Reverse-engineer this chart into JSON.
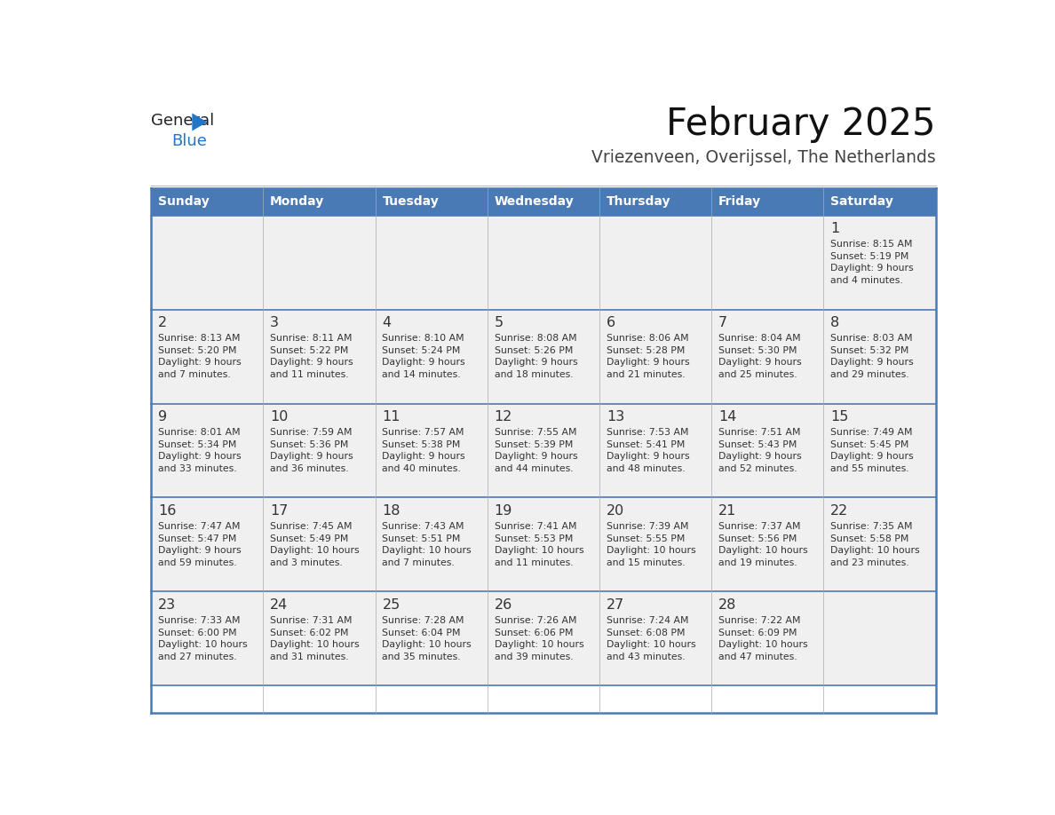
{
  "title": "February 2025",
  "subtitle": "Vriezenveen, Overijssel, The Netherlands",
  "days_of_week": [
    "Sunday",
    "Monday",
    "Tuesday",
    "Wednesday",
    "Thursday",
    "Friday",
    "Saturday"
  ],
  "header_bg": "#4a7ab5",
  "header_text_color": "#FFFFFF",
  "cell_bg": "#F0F0F0",
  "border_color": "#4a7ab5",
  "row_border_color": "#4a7ab5",
  "day_number_color": "#333333",
  "cell_text_color": "#333333",
  "title_color": "#111111",
  "subtitle_color": "#444444",
  "logo_general_color": "#222222",
  "logo_blue_color": "#2176C7",
  "weeks": [
    [
      {
        "day": null,
        "sunrise": null,
        "sunset": null,
        "daylight": null
      },
      {
        "day": null,
        "sunrise": null,
        "sunset": null,
        "daylight": null
      },
      {
        "day": null,
        "sunrise": null,
        "sunset": null,
        "daylight": null
      },
      {
        "day": null,
        "sunrise": null,
        "sunset": null,
        "daylight": null
      },
      {
        "day": null,
        "sunrise": null,
        "sunset": null,
        "daylight": null
      },
      {
        "day": null,
        "sunrise": null,
        "sunset": null,
        "daylight": null
      },
      {
        "day": 1,
        "sunrise": "8:15 AM",
        "sunset": "5:19 PM",
        "daylight_h": "9 hours",
        "daylight_m": "and 4 minutes."
      }
    ],
    [
      {
        "day": 2,
        "sunrise": "8:13 AM",
        "sunset": "5:20 PM",
        "daylight_h": "9 hours",
        "daylight_m": "and 7 minutes."
      },
      {
        "day": 3,
        "sunrise": "8:11 AM",
        "sunset": "5:22 PM",
        "daylight_h": "9 hours",
        "daylight_m": "and 11 minutes."
      },
      {
        "day": 4,
        "sunrise": "8:10 AM",
        "sunset": "5:24 PM",
        "daylight_h": "9 hours",
        "daylight_m": "and 14 minutes."
      },
      {
        "day": 5,
        "sunrise": "8:08 AM",
        "sunset": "5:26 PM",
        "daylight_h": "9 hours",
        "daylight_m": "and 18 minutes."
      },
      {
        "day": 6,
        "sunrise": "8:06 AM",
        "sunset": "5:28 PM",
        "daylight_h": "9 hours",
        "daylight_m": "and 21 minutes."
      },
      {
        "day": 7,
        "sunrise": "8:04 AM",
        "sunset": "5:30 PM",
        "daylight_h": "9 hours",
        "daylight_m": "and 25 minutes."
      },
      {
        "day": 8,
        "sunrise": "8:03 AM",
        "sunset": "5:32 PM",
        "daylight_h": "9 hours",
        "daylight_m": "and 29 minutes."
      }
    ],
    [
      {
        "day": 9,
        "sunrise": "8:01 AM",
        "sunset": "5:34 PM",
        "daylight_h": "9 hours",
        "daylight_m": "and 33 minutes."
      },
      {
        "day": 10,
        "sunrise": "7:59 AM",
        "sunset": "5:36 PM",
        "daylight_h": "9 hours",
        "daylight_m": "and 36 minutes."
      },
      {
        "day": 11,
        "sunrise": "7:57 AM",
        "sunset": "5:38 PM",
        "daylight_h": "9 hours",
        "daylight_m": "and 40 minutes."
      },
      {
        "day": 12,
        "sunrise": "7:55 AM",
        "sunset": "5:39 PM",
        "daylight_h": "9 hours",
        "daylight_m": "and 44 minutes."
      },
      {
        "day": 13,
        "sunrise": "7:53 AM",
        "sunset": "5:41 PM",
        "daylight_h": "9 hours",
        "daylight_m": "and 48 minutes."
      },
      {
        "day": 14,
        "sunrise": "7:51 AM",
        "sunset": "5:43 PM",
        "daylight_h": "9 hours",
        "daylight_m": "and 52 minutes."
      },
      {
        "day": 15,
        "sunrise": "7:49 AM",
        "sunset": "5:45 PM",
        "daylight_h": "9 hours",
        "daylight_m": "and 55 minutes."
      }
    ],
    [
      {
        "day": 16,
        "sunrise": "7:47 AM",
        "sunset": "5:47 PM",
        "daylight_h": "9 hours",
        "daylight_m": "and 59 minutes."
      },
      {
        "day": 17,
        "sunrise": "7:45 AM",
        "sunset": "5:49 PM",
        "daylight_h": "10 hours",
        "daylight_m": "and 3 minutes."
      },
      {
        "day": 18,
        "sunrise": "7:43 AM",
        "sunset": "5:51 PM",
        "daylight_h": "10 hours",
        "daylight_m": "and 7 minutes."
      },
      {
        "day": 19,
        "sunrise": "7:41 AM",
        "sunset": "5:53 PM",
        "daylight_h": "10 hours",
        "daylight_m": "and 11 minutes."
      },
      {
        "day": 20,
        "sunrise": "7:39 AM",
        "sunset": "5:55 PM",
        "daylight_h": "10 hours",
        "daylight_m": "and 15 minutes."
      },
      {
        "day": 21,
        "sunrise": "7:37 AM",
        "sunset": "5:56 PM",
        "daylight_h": "10 hours",
        "daylight_m": "and 19 minutes."
      },
      {
        "day": 22,
        "sunrise": "7:35 AM",
        "sunset": "5:58 PM",
        "daylight_h": "10 hours",
        "daylight_m": "and 23 minutes."
      }
    ],
    [
      {
        "day": 23,
        "sunrise": "7:33 AM",
        "sunset": "6:00 PM",
        "daylight_h": "10 hours",
        "daylight_m": "and 27 minutes."
      },
      {
        "day": 24,
        "sunrise": "7:31 AM",
        "sunset": "6:02 PM",
        "daylight_h": "10 hours",
        "daylight_m": "and 31 minutes."
      },
      {
        "day": 25,
        "sunrise": "7:28 AM",
        "sunset": "6:04 PM",
        "daylight_h": "10 hours",
        "daylight_m": "and 35 minutes."
      },
      {
        "day": 26,
        "sunrise": "7:26 AM",
        "sunset": "6:06 PM",
        "daylight_h": "10 hours",
        "daylight_m": "and 39 minutes."
      },
      {
        "day": 27,
        "sunrise": "7:24 AM",
        "sunset": "6:08 PM",
        "daylight_h": "10 hours",
        "daylight_m": "and 43 minutes."
      },
      {
        "day": 28,
        "sunrise": "7:22 AM",
        "sunset": "6:09 PM",
        "daylight_h": "10 hours",
        "daylight_m": "and 47 minutes."
      },
      {
        "day": null,
        "sunrise": null,
        "sunset": null,
        "daylight_h": null,
        "daylight_m": null
      }
    ]
  ]
}
